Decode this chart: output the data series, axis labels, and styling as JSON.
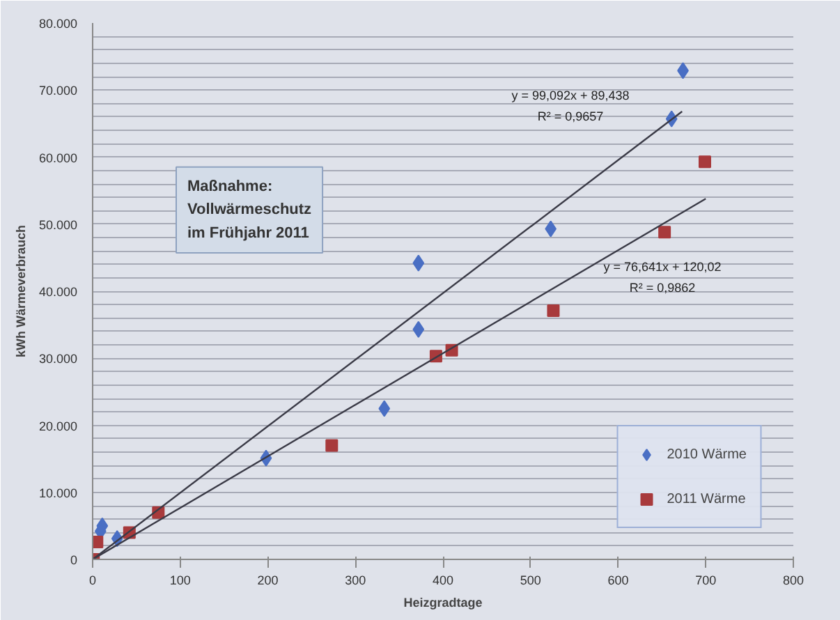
{
  "chart_data": {
    "type": "scatter",
    "xlabel": "Heizgradtage",
    "ylabel": "kWh Wärmeverbrauch",
    "xlim": [
      0,
      800
    ],
    "xticks": [
      0,
      100,
      200,
      300,
      400,
      500,
      600,
      700,
      800
    ],
    "ylim": [
      0,
      80000
    ],
    "yticks": [
      {
        "value": 0,
        "label": "0"
      },
      {
        "value": 2000,
        "label": null
      },
      {
        "value": 4000,
        "label": null
      },
      {
        "value": 6000,
        "label": null
      },
      {
        "value": 8000,
        "label": null
      },
      {
        "value": 10000,
        "label": "10.000"
      },
      {
        "value": 12000,
        "label": null
      },
      {
        "value": 14000,
        "label": null
      },
      {
        "value": 16000,
        "label": null
      },
      {
        "value": 18000,
        "label": null
      },
      {
        "value": 20000,
        "label": "20.000"
      },
      {
        "value": 22000,
        "label": null
      },
      {
        "value": 24000,
        "label": null
      },
      {
        "value": 26000,
        "label": null
      },
      {
        "value": 28000,
        "label": null
      },
      {
        "value": 30000,
        "label": "30.000"
      },
      {
        "value": 32000,
        "label": null
      },
      {
        "value": 34000,
        "label": null
      },
      {
        "value": 36000,
        "label": null
      },
      {
        "value": 38000,
        "label": null
      },
      {
        "value": 40000,
        "label": "40.000"
      },
      {
        "value": 42000,
        "label": null
      },
      {
        "value": 44000,
        "label": null
      },
      {
        "value": 46000,
        "label": null
      },
      {
        "value": 48000,
        "label": null
      },
      {
        "value": 50000,
        "label": "50.000"
      },
      {
        "value": 52000,
        "label": null
      },
      {
        "value": 54000,
        "label": null
      },
      {
        "value": 56000,
        "label": null
      },
      {
        "value": 58000,
        "label": null
      },
      {
        "value": 60000,
        "label": "60.000"
      },
      {
        "value": 62000,
        "label": null
      },
      {
        "value": 64000,
        "label": null
      },
      {
        "value": 66000,
        "label": null
      },
      {
        "value": 68000,
        "label": null
      },
      {
        "value": 70000,
        "label": "70.000"
      },
      {
        "value": 72000,
        "label": null
      },
      {
        "value": 74000,
        "label": null
      },
      {
        "value": 76000,
        "label": null
      },
      {
        "value": 78000,
        "label": null
      },
      {
        "value": 80000,
        "label": "80.000"
      }
    ],
    "grid": "y",
    "legend": "bottom right",
    "series": [
      {
        "name": "2010 Wärme",
        "marker": "diamond",
        "color": "#4a6fc4",
        "x": [
          674,
          661,
          523,
          372,
          372,
          333,
          198,
          11,
          9,
          28
        ],
        "values": [
          72900,
          65700,
          49300,
          44200,
          34300,
          22500,
          15100,
          5000,
          4200,
          3100
        ]
      },
      {
        "name": "2011 Wärme",
        "marker": "square",
        "color": "#a83a3c",
        "x": [
          699,
          653,
          526,
          410,
          392,
          273,
          75,
          42,
          5,
          1
        ],
        "values": [
          59300,
          48800,
          37100,
          31200,
          30300,
          17000,
          7000,
          4000,
          2600,
          0
        ]
      },
      {
        "type": "line",
        "color": "#3a3a46",
        "line_style": "solid",
        "x": [
          0,
          673
        ],
        "values": [
          0,
          66800
        ]
      },
      {
        "type": "line",
        "color": "#3a3a46",
        "line_style": "solid",
        "x": [
          0,
          700
        ],
        "values": [
          0,
          53800
        ]
      }
    ],
    "annotations": [
      "y = 99,092x + 89,438",
      "R² = 0,9657",
      "y = 76,641x + 120,02",
      "R² = 0,9862",
      "Maßnahme:\nVollwärmeschutz\nim Frühjahr 2011"
    ]
  }
}
